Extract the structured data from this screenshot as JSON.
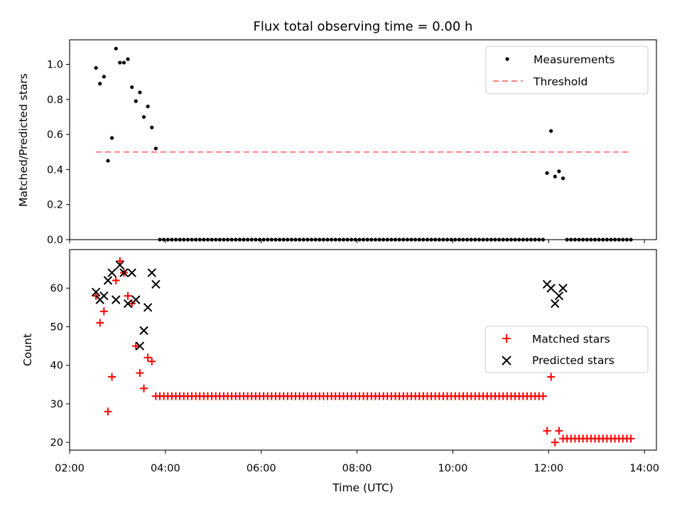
{
  "chart_data": [
    {
      "type": "scatter",
      "title": "Flux total observing time = 0.00 h",
      "ylabel": "Matched/Predicted stars",
      "xlim": [
        "02:00",
        "14:15"
      ],
      "ylim": [
        0,
        1.14
      ],
      "yticks": [
        "0.0",
        "0.2",
        "0.4",
        "0.6",
        "0.8",
        "1.0"
      ],
      "legend": {
        "placement": "top-right",
        "entries": [
          {
            "name": "Measurements",
            "marker": "dot",
            "color": "#000000"
          },
          {
            "name": "Threshold",
            "marker": "dashed-line",
            "color": "#ff7f7f"
          }
        ]
      },
      "series": [
        {
          "name": "Measurements",
          "color": "#000000",
          "points": [
            [
              "02:33",
              0.98
            ],
            [
              "02:38",
              0.89
            ],
            [
              "02:43",
              0.93
            ],
            [
              "02:48",
              0.45
            ],
            [
              "02:53",
              0.58
            ],
            [
              "02:58",
              1.09
            ],
            [
              "03:03",
              1.01
            ],
            [
              "03:08",
              1.01
            ],
            [
              "03:13",
              1.03
            ],
            [
              "03:18",
              0.87
            ],
            [
              "03:23",
              0.79
            ],
            [
              "03:28",
              0.84
            ],
            [
              "03:33",
              0.7
            ],
            [
              "03:38",
              0.76
            ],
            [
              "03:43",
              0.64
            ],
            [
              "03:48",
              0.52
            ],
            [
              "11:58",
              0.38
            ],
            [
              "12:03",
              0.62
            ],
            [
              "12:08",
              0.36
            ],
            [
              "12:13",
              0.39
            ],
            [
              "12:18",
              0.35
            ]
          ],
          "zero_runs": [
            {
              "start": "03:53",
              "end": "11:53",
              "step_min": 5
            },
            {
              "start": "12:23",
              "end": "13:43",
              "step_min": 5
            }
          ]
        },
        {
          "name": "Threshold",
          "color": "#ff7f7f",
          "style": "dashed",
          "x": [
            "02:33",
            "13:43"
          ],
          "y": [
            0.5,
            0.5
          ]
        }
      ]
    },
    {
      "type": "scatter",
      "xlabel": "Time (UTC)",
      "ylabel": "Count",
      "xlim": [
        "02:00",
        "14:15"
      ],
      "ylim": [
        18,
        70
      ],
      "yticks": [
        "20",
        "30",
        "40",
        "50",
        "60"
      ],
      "xticks": [
        "02:00",
        "04:00",
        "06:00",
        "08:00",
        "10:00",
        "12:00",
        "14:00"
      ],
      "legend": {
        "placement": "center-right",
        "entries": [
          {
            "name": "Matched stars",
            "marker": "plus",
            "color": "#ff0000"
          },
          {
            "name": "Predicted stars",
            "marker": "x",
            "color": "#000000"
          }
        ]
      },
      "series": [
        {
          "name": "Matched stars",
          "color": "#ff0000",
          "marker": "plus",
          "points": [
            [
              "02:33",
              58
            ],
            [
              "02:38",
              51
            ],
            [
              "02:43",
              54
            ],
            [
              "02:48",
              28
            ],
            [
              "02:53",
              37
            ],
            [
              "02:58",
              62
            ],
            [
              "03:03",
              67
            ],
            [
              "03:08",
              64
            ],
            [
              "03:13",
              58
            ],
            [
              "03:18",
              56
            ],
            [
              "03:23",
              45
            ],
            [
              "03:28",
              38
            ],
            [
              "03:33",
              34
            ],
            [
              "03:38",
              42
            ],
            [
              "03:43",
              41
            ],
            [
              "11:58",
              23
            ],
            [
              "12:03",
              37
            ],
            [
              "12:08",
              20
            ],
            [
              "12:13",
              23
            ]
          ],
          "flat_runs": [
            {
              "start": "03:48",
              "end": "11:53",
              "step_min": 5,
              "value": 32
            },
            {
              "start": "12:18",
              "end": "13:43",
              "step_min": 5,
              "value": 21
            }
          ]
        },
        {
          "name": "Predicted stars",
          "color": "#000000",
          "marker": "x",
          "points": [
            [
              "02:33",
              59
            ],
            [
              "02:38",
              57
            ],
            [
              "02:43",
              58
            ],
            [
              "02:48",
              62
            ],
            [
              "02:53",
              64
            ],
            [
              "02:58",
              57
            ],
            [
              "03:03",
              66
            ],
            [
              "03:08",
              64
            ],
            [
              "03:13",
              56
            ],
            [
              "03:18",
              64
            ],
            [
              "03:23",
              57
            ],
            [
              "03:28",
              45
            ],
            [
              "03:33",
              49
            ],
            [
              "03:38",
              55
            ],
            [
              "03:43",
              64
            ],
            [
              "03:48",
              61
            ],
            [
              "11:58",
              61
            ],
            [
              "12:03",
              60
            ],
            [
              "12:08",
              56
            ],
            [
              "12:13",
              58
            ],
            [
              "12:18",
              60
            ]
          ]
        }
      ]
    }
  ]
}
